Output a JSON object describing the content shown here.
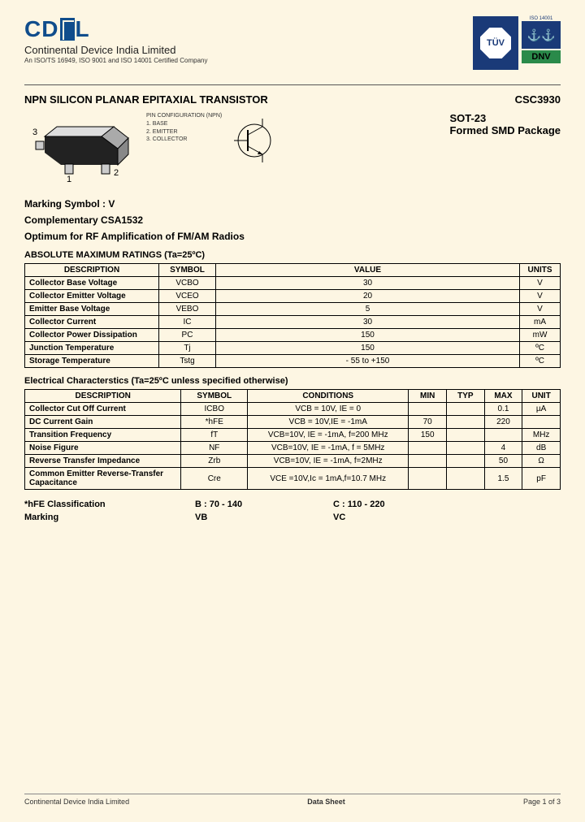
{
  "header": {
    "logo_text": "CD",
    "company_name": "Continental Device India Limited",
    "cert_line": "An ISO/TS 16949, ISO 9001 and ISO 14001 Certified Company",
    "badge_tuv": "TÜV",
    "badge_iso_top": "ISO 14001",
    "badge_dnv": "DNV",
    "badge_anchor": "⚓⚓"
  },
  "title": {
    "left": "NPN SILICON PLANAR EPITAXIAL TRANSISTOR",
    "right": "CSC3930"
  },
  "package": {
    "label1": "SOT-23",
    "label2": "Formed SMD Package",
    "pin_title": "PIN CONFIGURATION (NPN)",
    "pin1": "1. BASE",
    "pin2": "2. EMITTER",
    "pin3": "3. COLLECTOR"
  },
  "info": {
    "marking": "Marking Symbol : V",
    "complementary": "Complementary CSA1532",
    "optimum": "Optimum for RF Amplification of FM/AM Radios"
  },
  "abs_max": {
    "title": "ABSOLUTE MAXIMUM RATINGS (Ta=25ºC)",
    "headers": {
      "desc": "DESCRIPTION",
      "sym": "SYMBOL",
      "val": "VALUE",
      "unit": "UNITS"
    },
    "rows": [
      {
        "desc": "Collector Base Voltage",
        "sym": "VCBO",
        "val": "30",
        "unit": "V"
      },
      {
        "desc": "Collector Emitter Voltage",
        "sym": "VCEO",
        "val": "20",
        "unit": "V"
      },
      {
        "desc": "Emitter Base Voltage",
        "sym": "VEBO",
        "val": "5",
        "unit": "V"
      },
      {
        "desc": "Collector Current",
        "sym": "IC",
        "val": "30",
        "unit": "mA"
      },
      {
        "desc": "Collector Power Dissipation",
        "sym": "PC",
        "val": "150",
        "unit": "mW"
      },
      {
        "desc": "Junction Temperature",
        "sym": "Tj",
        "val": "150",
        "unit": "ºC"
      },
      {
        "desc": "Storage Temperature",
        "sym": "Tstg",
        "val": "- 55 to +150",
        "unit": "ºC"
      }
    ]
  },
  "elec": {
    "title": "Electrical Characterstics  (Ta=25ºC unless specified otherwise)",
    "headers": {
      "desc": "DESCRIPTION",
      "sym": "SYMBOL",
      "cond": "CONDITIONS",
      "min": "MIN",
      "typ": "TYP",
      "max": "MAX",
      "unit": "UNIT"
    },
    "rows": [
      {
        "desc": "Collector Cut Off Current",
        "sym": "ICBO",
        "cond": "VCB = 10V, IE = 0",
        "min": "",
        "typ": "",
        "max": "0.1",
        "unit": "µA"
      },
      {
        "desc": "DC Current Gain",
        "sym": "*hFE",
        "cond": "VCB = 10V,IE = -1mA",
        "min": "70",
        "typ": "",
        "max": "220",
        "unit": ""
      },
      {
        "desc": "Transition Frequency",
        "sym": "fT",
        "cond": "VCB=10V, IE = -1mA, f=200 MHz",
        "min": "150",
        "typ": "",
        "max": "",
        "unit": "MHz"
      },
      {
        "desc": "Noise Figure",
        "sym": "NF",
        "cond": "VCB=10V, IE = -1mA, f = 5MHz",
        "min": "",
        "typ": "",
        "max": "4",
        "unit": "dB"
      },
      {
        "desc": "Reverse Transfer Impedance",
        "sym": "Zrb",
        "cond": "VCB=10V, IE = -1mA, f=2MHz",
        "min": "",
        "typ": "",
        "max": "50",
        "unit": "Ω"
      },
      {
        "desc": "Common Emitter Reverse-Transfer Capacitance",
        "sym": "Cre",
        "cond": "VCE =10V,Ic = 1mA,f=10.7 MHz",
        "min": "",
        "typ": "",
        "max": "1.5",
        "unit": "pF"
      }
    ]
  },
  "classification": {
    "rows": [
      {
        "lbl": "*hFE Classification",
        "v1": "B : 70 - 140",
        "v2": "C : 110 - 220"
      },
      {
        "lbl": "Marking",
        "v1": "VB",
        "v2": "VC"
      }
    ]
  },
  "footer": {
    "left": "Continental Device India Limited",
    "mid": "Data Sheet",
    "right": "Page 1 of 3"
  }
}
